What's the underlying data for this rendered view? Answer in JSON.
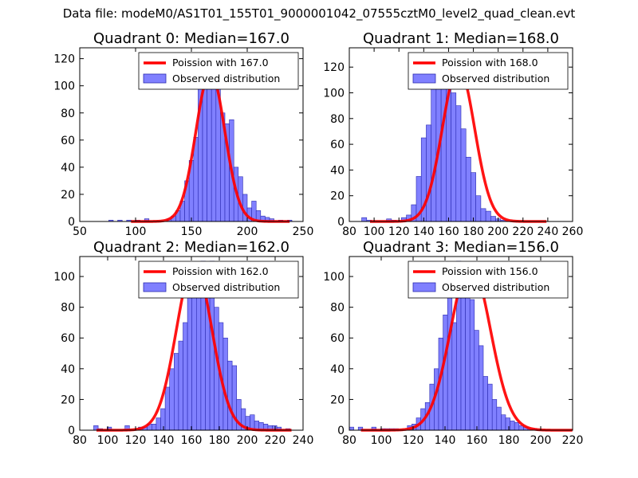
{
  "figure": {
    "suptitle": "Data file: modeM0/AS1T01_155T01_9000001042_07555cztM0_level2_quad_clean.evt"
  },
  "colors": {
    "bar_fill": "#8080ff",
    "bar_edge": "#2a2ab0",
    "poisson_line": "#ff0000",
    "axis": "#000000"
  },
  "chart_data": [
    {
      "type": "bar",
      "title": "Quadrant 0: Median=167.0",
      "xlim": [
        50,
        250
      ],
      "ylim": [
        0,
        128
      ],
      "xticks": [
        50,
        100,
        150,
        200,
        250
      ],
      "yticks": [
        0,
        20,
        40,
        60,
        80,
        100,
        120
      ],
      "legend": {
        "placement": "top-right",
        "line_label": "Poission with 167.0",
        "bar_label": "Observed distribution"
      },
      "bin_start": 72,
      "bin_width": 4,
      "counts": [
        0,
        1,
        0,
        1,
        0,
        1,
        0,
        1,
        0,
        2,
        0,
        0,
        0,
        0,
        2,
        4,
        8,
        15,
        30,
        45,
        62,
        100,
        120,
        115,
        106,
        115,
        80,
        72,
        75,
        40,
        33,
        20,
        10,
        15,
        8,
        4,
        3,
        2,
        0,
        1,
        0,
        1,
        0,
        0,
        0
      ],
      "poisson_mean": 167.0,
      "poisson_peak": 110
    },
    {
      "type": "bar",
      "title": "Quadrant 1: Median=168.0",
      "xlim": [
        80,
        260
      ],
      "ylim": [
        0,
        135
      ],
      "xticks": [
        80,
        100,
        120,
        140,
        160,
        180,
        200,
        220,
        240,
        260
      ],
      "yticks": [
        0,
        20,
        40,
        60,
        80,
        100,
        120
      ],
      "legend": {
        "placement": "top-right",
        "line_label": "Poission with 168.0",
        "bar_label": "Observed distribution"
      },
      "bin_start": 90,
      "bin_width": 4,
      "counts": [
        3,
        1,
        0,
        0,
        0,
        2,
        1,
        0,
        3,
        5,
        13,
        35,
        65,
        75,
        103,
        120,
        130,
        110,
        100,
        90,
        72,
        50,
        38,
        20,
        10,
        8,
        4,
        2,
        1,
        0,
        0,
        0,
        0,
        0,
        0,
        0,
        0,
        0,
        0,
        0,
        0,
        0,
        0
      ],
      "poisson_mean": 168.0,
      "poisson_peak": 120
    },
    {
      "type": "bar",
      "title": "Quadrant 2: Median=162.0",
      "xlim": [
        80,
        240
      ],
      "ylim": [
        0,
        113
      ],
      "xticks": [
        80,
        100,
        120,
        140,
        160,
        180,
        200,
        220,
        240
      ],
      "yticks": [
        0,
        20,
        40,
        60,
        80,
        100
      ],
      "legend": {
        "placement": "top-right",
        "line_label": "Poission with 162.0",
        "bar_label": "Observed distribution"
      },
      "bin_start": 90,
      "bin_width": 3.2,
      "counts": [
        3,
        1,
        0,
        2,
        0,
        0,
        0,
        3,
        0,
        0,
        2,
        2,
        4,
        4,
        8,
        14,
        28,
        40,
        50,
        58,
        70,
        90,
        105,
        100,
        110,
        95,
        110,
        80,
        70,
        60,
        45,
        42,
        20,
        14,
        9,
        10,
        6,
        5,
        4,
        3,
        3,
        2,
        0,
        1,
        0,
        0
      ],
      "poisson_mean": 162.0,
      "poisson_peak": 108
    },
    {
      "type": "bar",
      "title": "Quadrant 3: Median=156.0",
      "xlim": [
        80,
        220
      ],
      "ylim": [
        0,
        113
      ],
      "xticks": [
        80,
        100,
        120,
        140,
        160,
        180,
        200,
        220
      ],
      "yticks": [
        0,
        20,
        40,
        60,
        80,
        100
      ],
      "legend": {
        "placement": "top-right",
        "line_label": "Poission with 156.0",
        "bar_label": "Observed distribution"
      },
      "bin_start": 80,
      "bin_width": 2.8,
      "counts": [
        2,
        0,
        2,
        0,
        0,
        2,
        0,
        1,
        1,
        1,
        1,
        0,
        0,
        3,
        4,
        8,
        14,
        18,
        30,
        40,
        60,
        75,
        100,
        70,
        110,
        90,
        100,
        85,
        65,
        55,
        35,
        30,
        20,
        15,
        10,
        8,
        6,
        5,
        3,
        2,
        1,
        1
      ],
      "poisson_mean": 156.0,
      "poisson_peak": 108
    }
  ]
}
